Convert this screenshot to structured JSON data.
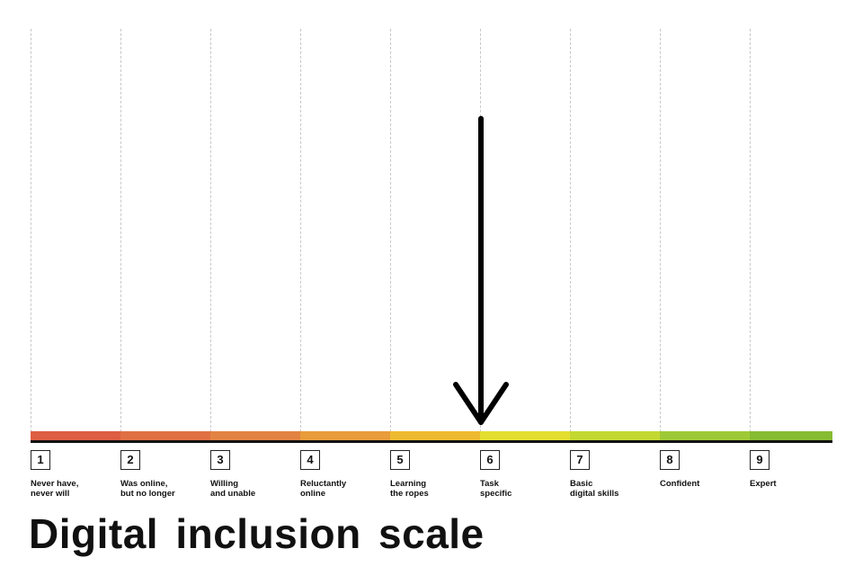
{
  "title": "Digital inclusion scale",
  "scale": {
    "indicated_stage": 6,
    "stages": [
      {
        "number": "1",
        "label": "Never have,\nnever will",
        "color": "#dd5e43"
      },
      {
        "number": "2",
        "label": "Was online,\nbut no longer",
        "color": "#e07043"
      },
      {
        "number": "3",
        "label": "Willing\nand unable",
        "color": "#e38343"
      },
      {
        "number": "4",
        "label": "Reluctantly\nonline",
        "color": "#e89c3a"
      },
      {
        "number": "5",
        "label": "Learning\nthe ropes",
        "color": "#eebb30"
      },
      {
        "number": "6",
        "label": "Task\nspecific",
        "color": "#e3de30"
      },
      {
        "number": "7",
        "label": "Basic\ndigital skills",
        "color": "#c4d832"
      },
      {
        "number": "8",
        "label": "Confident",
        "color": "#9ec936"
      },
      {
        "number": "9",
        "label": "Expert",
        "color": "#86bc32"
      }
    ]
  }
}
